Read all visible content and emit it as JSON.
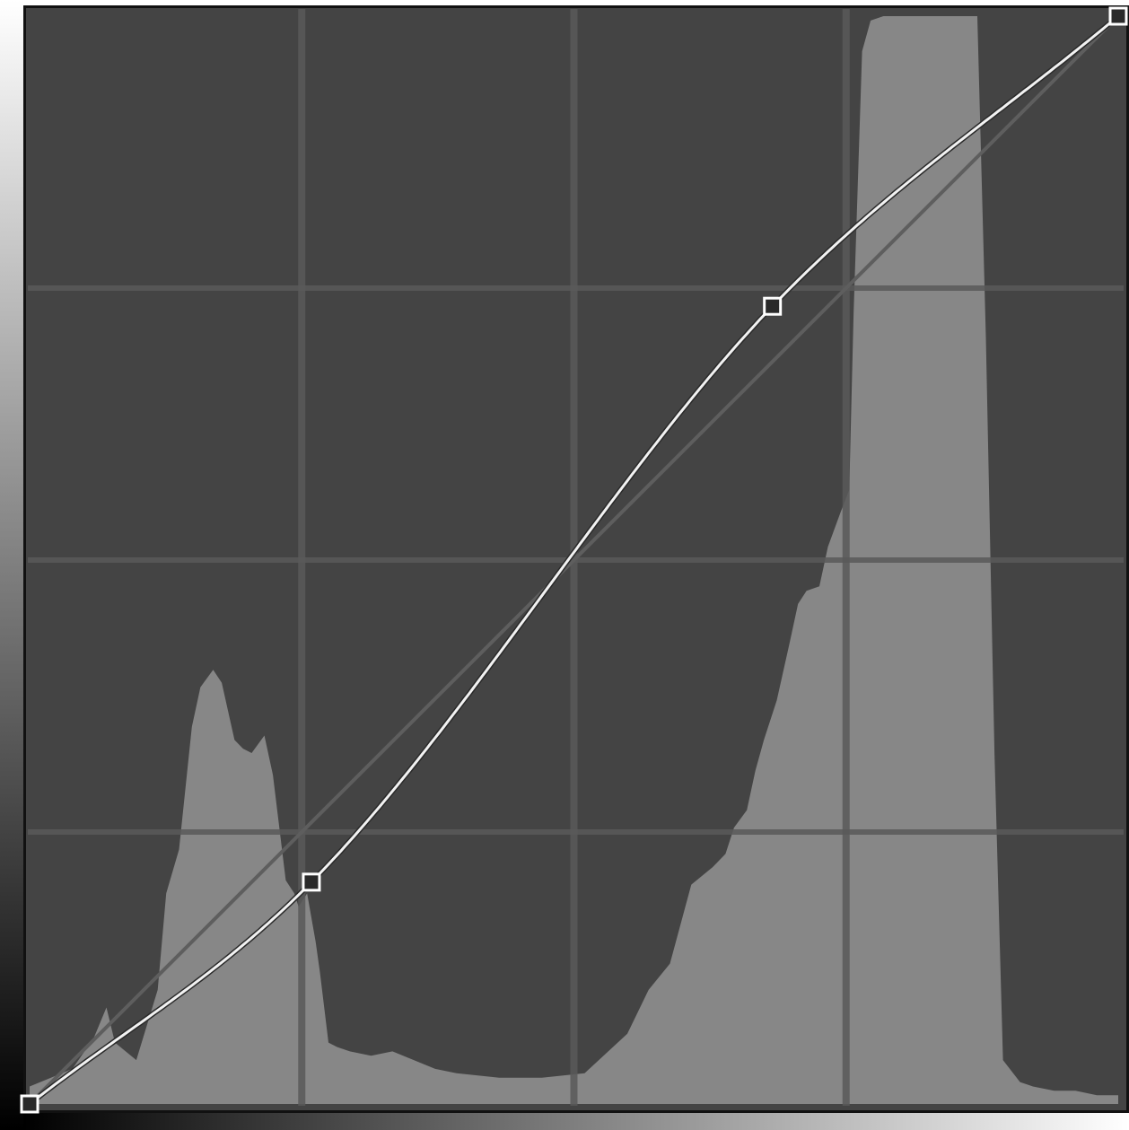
{
  "chart_data": {
    "type": "area",
    "title": "",
    "xlabel": "",
    "ylabel": "",
    "xlim": [
      0,
      255
    ],
    "ylim": [
      0,
      255
    ],
    "grid": true,
    "grid_divisions": 4,
    "histogram": {
      "x": [
        0,
        5,
        10,
        15,
        18,
        20,
        25,
        30,
        32,
        35,
        38,
        40,
        43,
        45,
        48,
        50,
        52,
        55,
        57,
        60,
        62,
        63,
        65,
        67,
        68,
        70,
        72,
        75,
        80,
        85,
        90,
        95,
        100,
        110,
        120,
        130,
        140,
        145,
        150,
        155,
        160,
        163,
        165,
        168,
        170,
        172,
        175,
        178,
        180,
        182,
        185,
        187,
        190,
        192,
        193,
        195,
        197,
        200,
        210,
        222,
        224,
        226,
        228,
        232,
        235,
        240,
        245,
        250,
        255
      ],
      "values": [
        4,
        6,
        8,
        15,
        22,
        14,
        10,
        26,
        48,
        58,
        86,
        95,
        99,
        96,
        83,
        81,
        80,
        84,
        75,
        51,
        48,
        45,
        48,
        37,
        30,
        14,
        13,
        12,
        11,
        12,
        10,
        8,
        7,
        6,
        6,
        7,
        16,
        26,
        32,
        50,
        54,
        57,
        63,
        67,
        76,
        83,
        92,
        105,
        114,
        117,
        118,
        127,
        135,
        140,
        180,
        240,
        247,
        248,
        248,
        248,
        175,
        80,
        10,
        5,
        4,
        3,
        3,
        2,
        2
      ]
    },
    "histogram_max": 248,
    "reference_line": {
      "x": [
        0,
        255
      ],
      "y": [
        0,
        255
      ]
    },
    "curve": {
      "control_points": [
        {
          "x": 0,
          "y": 0
        },
        {
          "x": 66,
          "y": 52
        },
        {
          "x": 174,
          "y": 187
        },
        {
          "x": 255,
          "y": 255
        }
      ]
    },
    "input_gradient": {
      "from": "#000000",
      "to": "#ffffff"
    },
    "output_gradient": {
      "from": "#000000",
      "to": "#ffffff"
    }
  },
  "colors": {
    "plot_background": "#444444",
    "histogram_fill": "#878787",
    "grid_line": "#5a5a5a",
    "grid_line_on_histogram": "#6e6e6e",
    "reference_line": "#5e5e5e",
    "curve": "#f2f2f2",
    "curve_shadow": "#2a2a2a",
    "control_point_fill": "#2a2a2a",
    "control_point_stroke": "#ffffff"
  },
  "icons": {
    "control_point": "square-handle-icon"
  }
}
